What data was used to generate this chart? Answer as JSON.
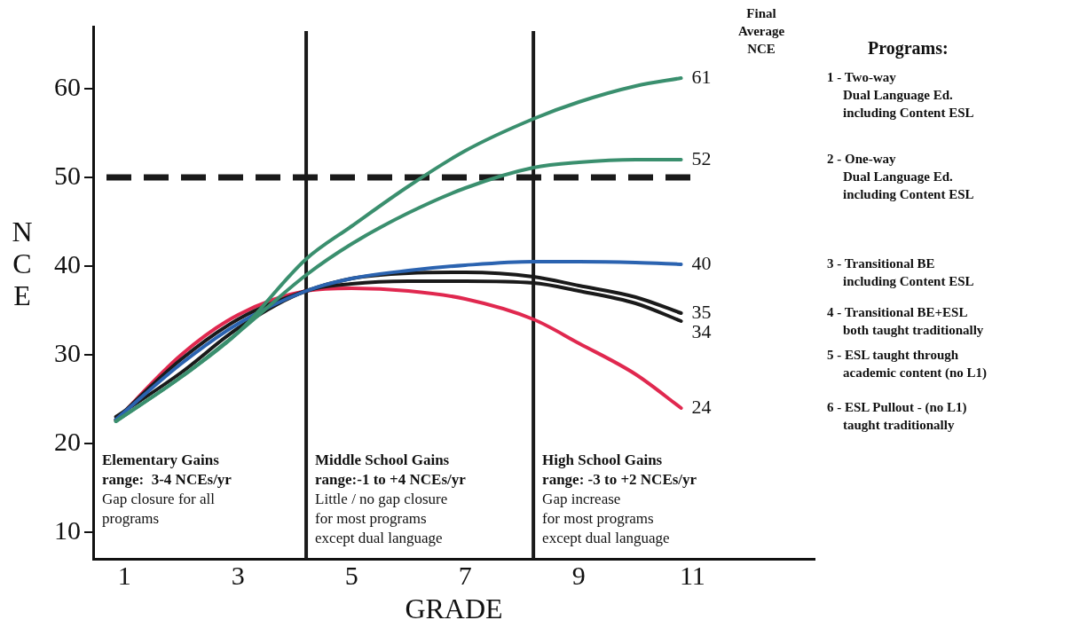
{
  "chart_data": {
    "type": "line",
    "xlabel": "GRADE",
    "ylabel": "NCE",
    "x": [
      0.85,
      2,
      3,
      4.2,
      5,
      6,
      7,
      8.2,
      9,
      10,
      10.8
    ],
    "xlim": [
      0.45,
      13.15
    ],
    "xticks": [
      1,
      3,
      5,
      7,
      9,
      11
    ],
    "ylim": [
      7,
      67
    ],
    "yticks": [
      10,
      20,
      30,
      40,
      50,
      60
    ],
    "marker": "none",
    "series": [
      {
        "color": "#3a8f6e",
        "values": [
          22.5,
          27.5,
          32.5,
          40.8,
          44.5,
          49,
          53,
          56.6,
          58.5,
          60.3,
          61.2
        ],
        "value_labels": [
          null,
          null,
          null,
          null,
          null,
          null,
          null,
          null,
          null,
          null,
          "61"
        ]
      },
      {
        "color": "#3a8f6e",
        "values": [
          22.5,
          27.5,
          32.5,
          39,
          42.5,
          46,
          48.8,
          51.1,
          51.7,
          52,
          52
        ],
        "value_labels": [
          null,
          null,
          null,
          null,
          null,
          null,
          null,
          null,
          null,
          null,
          "52"
        ]
      },
      {
        "color": "#2b63b0",
        "values": [
          22.7,
          29,
          33.5,
          37.2,
          38.6,
          39.5,
          40.1,
          40.5,
          40.5,
          40.4,
          40.2
        ],
        "value_labels": [
          null,
          null,
          null,
          null,
          null,
          null,
          null,
          null,
          null,
          null,
          "40"
        ]
      },
      {
        "color": "#1a1a1a",
        "values": [
          22.7,
          29.5,
          34,
          37.2,
          38.6,
          39.2,
          39.3,
          38.8,
          37.8,
          36.5,
          34.7
        ],
        "value_labels": [
          null,
          null,
          null,
          null,
          null,
          null,
          null,
          null,
          null,
          null,
          "35"
        ]
      },
      {
        "color": "#1a1a1a",
        "values": [
          23,
          28,
          33,
          37.2,
          38,
          38.3,
          38.3,
          38.1,
          37.2,
          35.8,
          33.8
        ],
        "value_labels": [
          null,
          null,
          null,
          null,
          null,
          null,
          null,
          null,
          null,
          null,
          "34"
        ]
      },
      {
        "color": "#e0284f",
        "values": [
          22.6,
          30,
          34.5,
          37.2,
          37.5,
          37.2,
          36.3,
          34,
          31.3,
          27.8,
          24
        ],
        "value_labels": [
          null,
          null,
          null,
          null,
          null,
          null,
          null,
          null,
          null,
          null,
          "24"
        ]
      }
    ],
    "ref_lines": [
      {
        "axis": "y",
        "value": 50,
        "line_style": "dashed",
        "color": "#1a1a1a"
      },
      {
        "axis": "x",
        "value": 4.2,
        "line_style": "solid",
        "color": "#1a1a1a"
      },
      {
        "axis": "x",
        "value": 8.2,
        "line_style": "solid",
        "color": "#1a1a1a"
      }
    ],
    "annotations": [
      "Elementary Gains\nrange:  3-4 NCEs/yr\nGap closure for all\nprograms",
      "Middle School Gains\nrange:-1 to +4 NCEs/yr\nLittle / no gap closure\nfor most programs\nexcept dual language",
      "High School Gains\nrange: -3 to +2 NCEs/yr\nGap increase\nfor most programs\nexcept dual language",
      "Final\nAverage\nNCE",
      "Programs:",
      "1 - Two-way\nDual Language Ed.\nincluding Content ESL",
      "2 - One-way\nDual Language Ed.\nincluding Content ESL",
      "3 - Transitional BE\nincluding Content ESL",
      "4 - Transitional BE+ESL\nboth taught traditionally",
      "5 - ESL taught through\nacademic content (no L1)",
      "6 - ESL Pullout - (no L1)\ntaught traditionally"
    ]
  }
}
